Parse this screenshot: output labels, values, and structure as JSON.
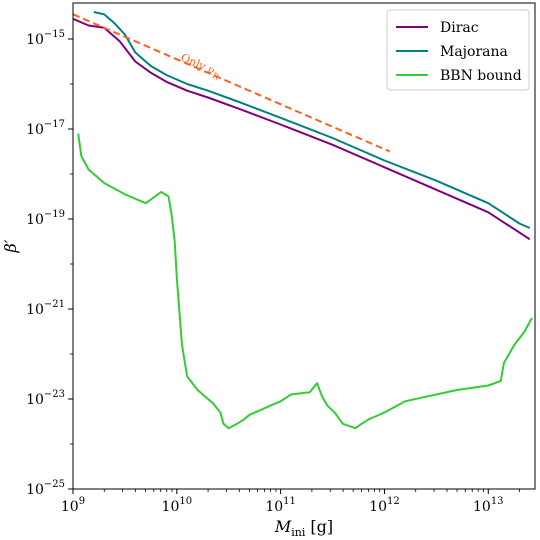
{
  "chart_data": {
    "type": "line",
    "xlabel": {
      "symbol": "M",
      "sub": "ini",
      "unit": " [g]"
    },
    "ylabel": "β′",
    "xscale": "log",
    "yscale": "log",
    "xlim_log10": [
      9,
      13.45
    ],
    "ylim_log10": [
      -25,
      -14.2
    ],
    "x_ticks": [
      {
        "base": "10",
        "exp": "9",
        "value_log10": 9
      },
      {
        "base": "10",
        "exp": "10",
        "value_log10": 10
      },
      {
        "base": "10",
        "exp": "11",
        "value_log10": 11
      },
      {
        "base": "10",
        "exp": "12",
        "value_log10": 12
      },
      {
        "base": "10",
        "exp": "13",
        "value_log10": 13
      }
    ],
    "y_ticks": [
      {
        "base": "10",
        "exp": "−15",
        "value_log10": -15
      },
      {
        "base": "10",
        "exp": "−17",
        "value_log10": -17
      },
      {
        "base": "10",
        "exp": "−19",
        "value_log10": -19
      },
      {
        "base": "10",
        "exp": "−21",
        "value_log10": -21
      },
      {
        "base": "10",
        "exp": "−23",
        "value_log10": -23
      },
      {
        "base": "10",
        "exp": "−25",
        "value_log10": -25
      }
    ],
    "legend_position": "top-right",
    "annotation": {
      "text": "Only ν",
      "sub": "R",
      "color": "#ff5f1f"
    },
    "series": [
      {
        "name": "Dirac",
        "color": "#800080",
        "style": "solid",
        "log10_x": [
          9.0,
          9.15,
          9.3,
          9.45,
          9.6,
          9.75,
          9.9,
          10.1,
          10.3,
          10.6,
          11.0,
          11.5,
          12.0,
          12.5,
          13.0,
          13.4
        ],
        "log10_y": [
          -14.55,
          -14.7,
          -14.75,
          -15.05,
          -15.5,
          -15.75,
          -15.95,
          -16.15,
          -16.3,
          -16.55,
          -16.9,
          -17.35,
          -17.85,
          -18.35,
          -18.85,
          -19.45
        ]
      },
      {
        "name": "Majorana",
        "color": "#008080",
        "style": "solid",
        "log10_x": [
          9.2,
          9.3,
          9.4,
          9.5,
          9.6,
          9.75,
          9.9,
          10.1,
          10.3,
          10.6,
          11.0,
          11.5,
          12.0,
          12.5,
          13.0,
          13.3,
          13.4
        ],
        "log10_y": [
          -14.4,
          -14.45,
          -14.65,
          -14.9,
          -15.3,
          -15.6,
          -15.8,
          -16.0,
          -16.15,
          -16.4,
          -16.75,
          -17.2,
          -17.7,
          -18.15,
          -18.65,
          -19.1,
          -19.2
        ]
      },
      {
        "name": "BBN bound",
        "color": "#32cd32",
        "style": "solid",
        "log10_x": [
          9.05,
          9.08,
          9.15,
          9.3,
          9.5,
          9.7,
          9.85,
          9.92,
          9.95,
          9.98,
          10.0,
          10.05,
          10.1,
          10.2,
          10.35,
          10.42,
          10.45,
          10.5,
          10.58,
          10.65,
          10.7,
          10.8,
          10.9,
          11.0,
          11.1,
          11.28,
          11.35,
          11.4,
          11.45,
          11.52,
          11.6,
          11.72,
          11.78,
          11.85,
          11.9,
          12.0,
          12.2,
          12.4,
          12.7,
          13.0,
          13.12,
          13.15,
          13.25,
          13.35,
          13.42
        ],
        "log10_y": [
          -17.1,
          -17.6,
          -17.9,
          -18.2,
          -18.45,
          -18.65,
          -18.4,
          -18.5,
          -18.9,
          -19.5,
          -20.3,
          -21.8,
          -22.5,
          -22.8,
          -23.1,
          -23.3,
          -23.55,
          -23.65,
          -23.55,
          -23.45,
          -23.35,
          -23.25,
          -23.15,
          -23.05,
          -22.9,
          -22.85,
          -22.65,
          -22.95,
          -23.15,
          -23.3,
          -23.55,
          -23.65,
          -23.55,
          -23.45,
          -23.4,
          -23.3,
          -23.05,
          -22.95,
          -22.8,
          -22.7,
          -22.6,
          -22.2,
          -21.8,
          -21.5,
          -21.2
        ]
      },
      {
        "name": "",
        "color": "#ff5f1f",
        "style": "dashed",
        "log10_x": [
          9.0,
          12.05
        ],
        "log10_y": [
          -14.45,
          -17.5
        ]
      }
    ]
  }
}
